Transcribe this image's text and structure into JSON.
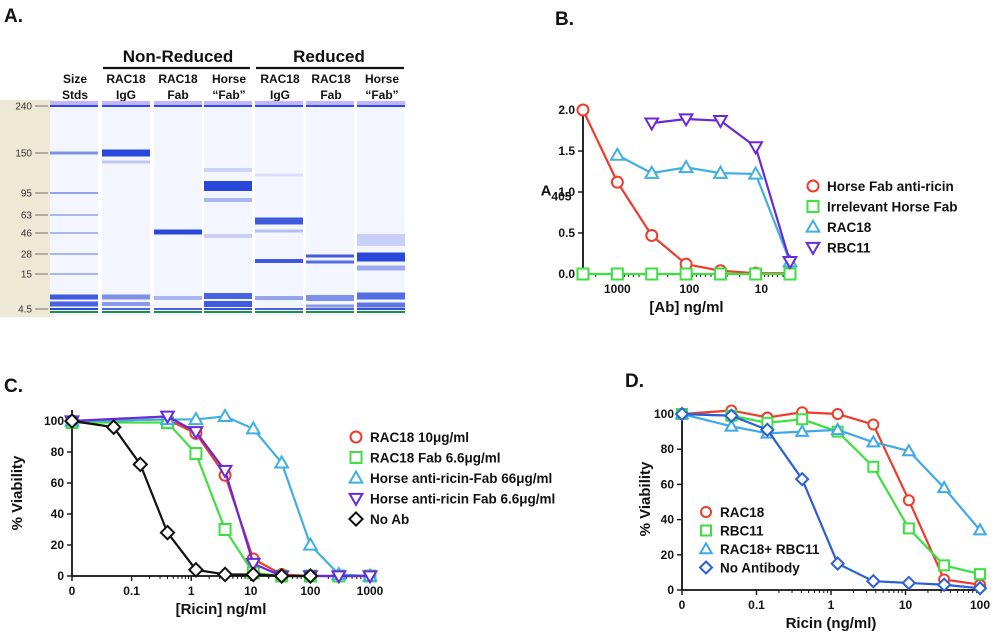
{
  "panels": {
    "A": "A.",
    "B": "B.",
    "C": "C.",
    "D": "D."
  },
  "gel": {
    "group_nonreduced": "Non-Reduced",
    "group_reduced": "Reduced",
    "lanes": [
      {
        "line1": "Size",
        "line2": "Stds"
      },
      {
        "line1": "RAC18",
        "line2": "IgG"
      },
      {
        "line1": "RAC18",
        "line2": "Fab"
      },
      {
        "line1": "Horse",
        "line2": "“Fab”"
      },
      {
        "line1": "RAC18",
        "line2": "IgG"
      },
      {
        "line1": "RAC18",
        "line2": "Fab"
      },
      {
        "line1": "Horse",
        "line2": "“Fab”"
      }
    ],
    "ladder": [
      "240",
      "150",
      "95",
      "63",
      "46",
      "28",
      "15",
      "4.5"
    ]
  },
  "chart_data": [
    {
      "panel": "B",
      "type": "line",
      "xscale": "log-reversed",
      "xlabel": "[Ab] ng/ml",
      "ylabel_main": "A",
      "ylabel_sub": "405",
      "xlim": [
        3000,
        4
      ],
      "ylim": [
        0,
        2.0
      ],
      "xticks": [
        {
          "v": 1000,
          "label": "1000"
        },
        {
          "v": 100,
          "label": "100"
        },
        {
          "v": 10,
          "label": "10"
        }
      ],
      "yticks": [
        {
          "v": 0,
          "label": "0.0"
        },
        {
          "v": 0.5,
          "label": "0.5"
        },
        {
          "v": 1.0,
          "label": "1.0"
        },
        {
          "v": 1.5,
          "label": "1.5"
        },
        {
          "v": 2.0,
          "label": "2.0"
        }
      ],
      "series": [
        {
          "name": "Horse Fab anti-ricin",
          "color": "#ee3b2b",
          "marker": "circle",
          "x": [
            3000,
            1000,
            333,
            111,
            37,
            12,
            4
          ],
          "y": [
            2.0,
            1.12,
            0.47,
            0.12,
            0.04,
            0.01,
            0.01
          ]
        },
        {
          "name": "Irrelevant Horse Fab",
          "color": "#3de040",
          "marker": "square",
          "x": [
            3000,
            1000,
            333,
            111,
            37,
            12,
            4
          ],
          "y": [
            0.0,
            0.0,
            0.0,
            0.0,
            0.0,
            0.0,
            0.0
          ]
        },
        {
          "name": "RAC18",
          "color": "#3fb0e0",
          "marker": "triangle-up",
          "x": [
            1000,
            333,
            111,
            37,
            12,
            4
          ],
          "y": [
            1.45,
            1.23,
            1.3,
            1.23,
            1.22,
            0.15
          ]
        },
        {
          "name": "RBC11",
          "color": "#6a28d8",
          "marker": "triangle-down",
          "x": [
            333,
            111,
            37,
            12,
            4
          ],
          "y": [
            1.84,
            1.89,
            1.87,
            1.55,
            0.15
          ]
        }
      ]
    },
    {
      "panel": "C",
      "type": "line",
      "xscale": "log",
      "xlabel": "[Ricin] ng/ml",
      "ylabel": "% Viability",
      "xlim": [
        0,
        1000
      ],
      "ylim": [
        0,
        100
      ],
      "xticks": [
        {
          "v": 0,
          "label": "0"
        },
        {
          "v": 0.1,
          "label": "0.1"
        },
        {
          "v": 1,
          "label": "1"
        },
        {
          "v": 10,
          "label": "10"
        },
        {
          "v": 100,
          "label": "100"
        },
        {
          "v": 1000,
          "label": "1000"
        }
      ],
      "yticks": [
        {
          "v": 0,
          "label": "0"
        },
        {
          "v": 20,
          "label": "20"
        },
        {
          "v": 40,
          "label": "40"
        },
        {
          "v": 60,
          "label": "60"
        },
        {
          "v": 80,
          "label": "80"
        },
        {
          "v": 100,
          "label": "100"
        }
      ],
      "series": [
        {
          "name": "RAC18 10μg/ml",
          "color": "#ee3b2b",
          "marker": "circle",
          "x": [
            0,
            0.4,
            1.2,
            3.7,
            11,
            33,
            100,
            300,
            1000
          ],
          "y": [
            100,
            101,
            92,
            65,
            11,
            1,
            0,
            0,
            0
          ]
        },
        {
          "name": "RAC18 Fab 6.6μg/ml",
          "color": "#3de040",
          "marker": "square",
          "x": [
            0,
            0.4,
            1.2,
            3.7,
            11,
            33,
            100,
            300,
            1000
          ],
          "y": [
            99,
            99,
            79,
            30,
            2,
            0,
            0,
            0,
            0
          ]
        },
        {
          "name": "Horse anti-ricin-Fab 66μg/ml",
          "color": "#3fb0e0",
          "marker": "triangle-up",
          "x": [
            0,
            0.4,
            1.2,
            3.7,
            11,
            33,
            100,
            300,
            1000
          ],
          "y": [
            100,
            101,
            101,
            103,
            95,
            73,
            20,
            1,
            0
          ]
        },
        {
          "name": "Horse anti-ricin Fab 6.6μg/ml",
          "color": "#6a28d8",
          "marker": "triangle-down",
          "x": [
            0,
            0.4,
            1.2,
            3.7,
            11,
            33,
            100,
            300,
            1000
          ],
          "y": [
            100,
            103,
            93,
            68,
            8,
            0,
            0,
            0,
            0
          ]
        },
        {
          "name": "No Ab",
          "color": "#111111",
          "marker": "diamond",
          "x": [
            0,
            0.05,
            0.14,
            0.4,
            1.2,
            3.7,
            11,
            33,
            100
          ],
          "y": [
            100,
            96,
            72,
            28,
            4,
            1,
            1,
            0,
            0
          ]
        }
      ]
    },
    {
      "panel": "D",
      "type": "line",
      "xscale": "log",
      "xlabel": "Ricin (ng/ml)",
      "ylabel": "% Viability",
      "xlim": [
        0,
        100
      ],
      "ylim": [
        0,
        100
      ],
      "xticks": [
        {
          "v": 0,
          "label": "0"
        },
        {
          "v": 0.1,
          "label": "0.1"
        },
        {
          "v": 1,
          "label": "1"
        },
        {
          "v": 10,
          "label": "10"
        },
        {
          "v": 100,
          "label": "100"
        }
      ],
      "yticks": [
        {
          "v": 0,
          "label": "0"
        },
        {
          "v": 20,
          "label": "20"
        },
        {
          "v": 40,
          "label": "40"
        },
        {
          "v": 60,
          "label": "60"
        },
        {
          "v": 80,
          "label": "80"
        },
        {
          "v": 100,
          "label": "100"
        }
      ],
      "series": [
        {
          "name": "RAC18",
          "color": "#ee3b2b",
          "marker": "circle",
          "x": [
            0,
            0.046,
            0.14,
            0.41,
            1.23,
            3.7,
            11.1,
            33,
            100
          ],
          "y": [
            100,
            102,
            98,
            101,
            100,
            94,
            51,
            6,
            3
          ]
        },
        {
          "name": "RBC11",
          "color": "#3de040",
          "marker": "square",
          "x": [
            0,
            0.046,
            0.14,
            0.41,
            1.23,
            3.7,
            11.1,
            33,
            100
          ],
          "y": [
            100,
            99,
            95,
            97,
            90,
            70,
            35,
            14,
            9
          ]
        },
        {
          "name": "RAC18+ RBC11",
          "color": "#3fa8e8",
          "marker": "triangle-up",
          "x": [
            0,
            0.046,
            0.14,
            0.41,
            1.23,
            3.7,
            11.1,
            33,
            100
          ],
          "y": [
            100,
            93,
            89,
            90,
            91,
            84,
            79,
            58,
            34
          ]
        },
        {
          "name": "No Antibody",
          "color": "#2a5fd8",
          "marker": "diamond",
          "x": [
            0,
            0.046,
            0.14,
            0.41,
            1.23,
            3.7,
            11.1,
            33,
            100
          ],
          "y": [
            100,
            99,
            91,
            63,
            15,
            5,
            4,
            3,
            1
          ]
        }
      ]
    }
  ]
}
